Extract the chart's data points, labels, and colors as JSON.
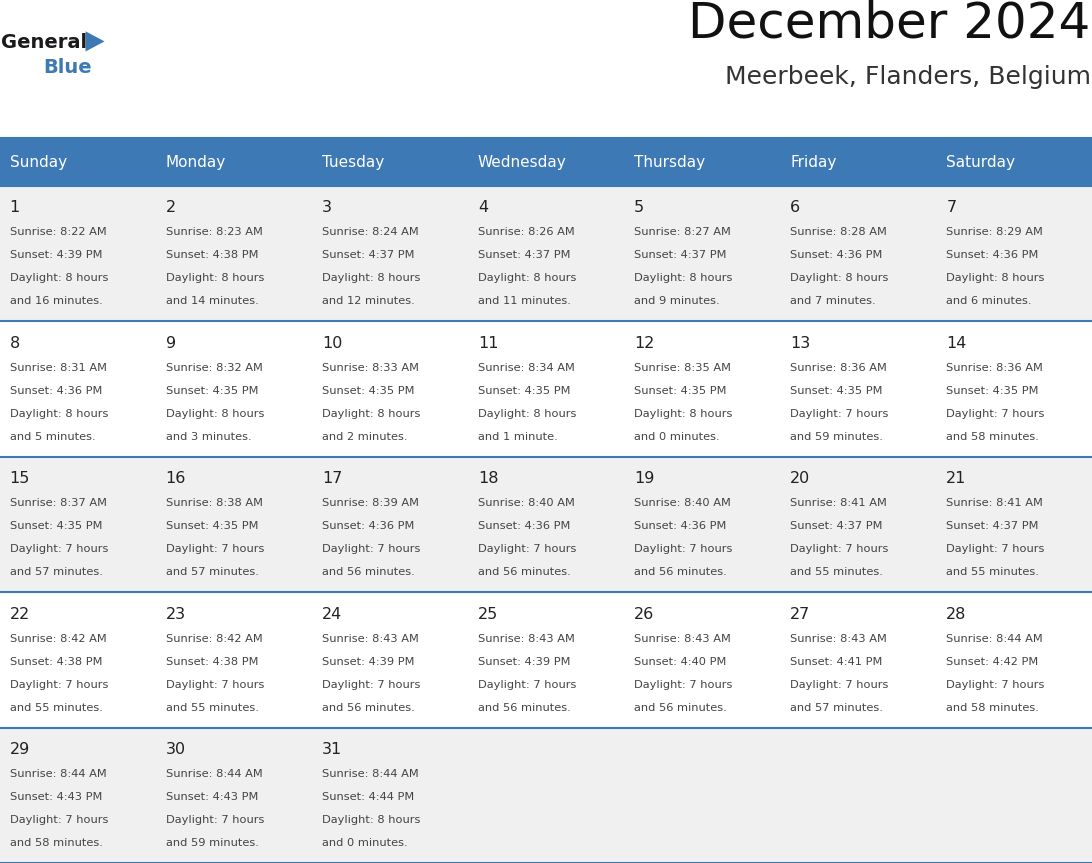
{
  "title": "December 2024",
  "subtitle": "Meerbeek, Flanders, Belgium",
  "days_of_week": [
    "Sunday",
    "Monday",
    "Tuesday",
    "Wednesday",
    "Thursday",
    "Friday",
    "Saturday"
  ],
  "header_bg": "#3d7ab5",
  "header_text": "#ffffff",
  "row_bg_even": "#f0f0f0",
  "row_bg_odd": "#ffffff",
  "cell_border": "#3d7ab5",
  "day_number_color": "#222222",
  "cell_text_color": "#444444",
  "title_color": "#111111",
  "subtitle_color": "#333333",
  "logo_general_color": "#1a1a1a",
  "logo_blue_color": "#3d7ab5",
  "weeks": [
    [
      {
        "day": 1,
        "sunrise": "8:22 AM",
        "sunset": "4:39 PM",
        "daylight": "8 hours",
        "daylight2": "and 16 minutes."
      },
      {
        "day": 2,
        "sunrise": "8:23 AM",
        "sunset": "4:38 PM",
        "daylight": "8 hours",
        "daylight2": "and 14 minutes."
      },
      {
        "day": 3,
        "sunrise": "8:24 AM",
        "sunset": "4:37 PM",
        "daylight": "8 hours",
        "daylight2": "and 12 minutes."
      },
      {
        "day": 4,
        "sunrise": "8:26 AM",
        "sunset": "4:37 PM",
        "daylight": "8 hours",
        "daylight2": "and 11 minutes."
      },
      {
        "day": 5,
        "sunrise": "8:27 AM",
        "sunset": "4:37 PM",
        "daylight": "8 hours",
        "daylight2": "and 9 minutes."
      },
      {
        "day": 6,
        "sunrise": "8:28 AM",
        "sunset": "4:36 PM",
        "daylight": "8 hours",
        "daylight2": "and 7 minutes."
      },
      {
        "day": 7,
        "sunrise": "8:29 AM",
        "sunset": "4:36 PM",
        "daylight": "8 hours",
        "daylight2": "and 6 minutes."
      }
    ],
    [
      {
        "day": 8,
        "sunrise": "8:31 AM",
        "sunset": "4:36 PM",
        "daylight": "8 hours",
        "daylight2": "and 5 minutes."
      },
      {
        "day": 9,
        "sunrise": "8:32 AM",
        "sunset": "4:35 PM",
        "daylight": "8 hours",
        "daylight2": "and 3 minutes."
      },
      {
        "day": 10,
        "sunrise": "8:33 AM",
        "sunset": "4:35 PM",
        "daylight": "8 hours",
        "daylight2": "and 2 minutes."
      },
      {
        "day": 11,
        "sunrise": "8:34 AM",
        "sunset": "4:35 PM",
        "daylight": "8 hours",
        "daylight2": "and 1 minute."
      },
      {
        "day": 12,
        "sunrise": "8:35 AM",
        "sunset": "4:35 PM",
        "daylight": "8 hours",
        "daylight2": "and 0 minutes."
      },
      {
        "day": 13,
        "sunrise": "8:36 AM",
        "sunset": "4:35 PM",
        "daylight": "7 hours",
        "daylight2": "and 59 minutes."
      },
      {
        "day": 14,
        "sunrise": "8:36 AM",
        "sunset": "4:35 PM",
        "daylight": "7 hours",
        "daylight2": "and 58 minutes."
      }
    ],
    [
      {
        "day": 15,
        "sunrise": "8:37 AM",
        "sunset": "4:35 PM",
        "daylight": "7 hours",
        "daylight2": "and 57 minutes."
      },
      {
        "day": 16,
        "sunrise": "8:38 AM",
        "sunset": "4:35 PM",
        "daylight": "7 hours",
        "daylight2": "and 57 minutes."
      },
      {
        "day": 17,
        "sunrise": "8:39 AM",
        "sunset": "4:36 PM",
        "daylight": "7 hours",
        "daylight2": "and 56 minutes."
      },
      {
        "day": 18,
        "sunrise": "8:40 AM",
        "sunset": "4:36 PM",
        "daylight": "7 hours",
        "daylight2": "and 56 minutes."
      },
      {
        "day": 19,
        "sunrise": "8:40 AM",
        "sunset": "4:36 PM",
        "daylight": "7 hours",
        "daylight2": "and 56 minutes."
      },
      {
        "day": 20,
        "sunrise": "8:41 AM",
        "sunset": "4:37 PM",
        "daylight": "7 hours",
        "daylight2": "and 55 minutes."
      },
      {
        "day": 21,
        "sunrise": "8:41 AM",
        "sunset": "4:37 PM",
        "daylight": "7 hours",
        "daylight2": "and 55 minutes."
      }
    ],
    [
      {
        "day": 22,
        "sunrise": "8:42 AM",
        "sunset": "4:38 PM",
        "daylight": "7 hours",
        "daylight2": "and 55 minutes."
      },
      {
        "day": 23,
        "sunrise": "8:42 AM",
        "sunset": "4:38 PM",
        "daylight": "7 hours",
        "daylight2": "and 55 minutes."
      },
      {
        "day": 24,
        "sunrise": "8:43 AM",
        "sunset": "4:39 PM",
        "daylight": "7 hours",
        "daylight2": "and 56 minutes."
      },
      {
        "day": 25,
        "sunrise": "8:43 AM",
        "sunset": "4:39 PM",
        "daylight": "7 hours",
        "daylight2": "and 56 minutes."
      },
      {
        "day": 26,
        "sunrise": "8:43 AM",
        "sunset": "4:40 PM",
        "daylight": "7 hours",
        "daylight2": "and 56 minutes."
      },
      {
        "day": 27,
        "sunrise": "8:43 AM",
        "sunset": "4:41 PM",
        "daylight": "7 hours",
        "daylight2": "and 57 minutes."
      },
      {
        "day": 28,
        "sunrise": "8:44 AM",
        "sunset": "4:42 PM",
        "daylight": "7 hours",
        "daylight2": "and 58 minutes."
      }
    ],
    [
      {
        "day": 29,
        "sunrise": "8:44 AM",
        "sunset": "4:43 PM",
        "daylight": "7 hours",
        "daylight2": "and 58 minutes."
      },
      {
        "day": 30,
        "sunrise": "8:44 AM",
        "sunset": "4:43 PM",
        "daylight": "7 hours",
        "daylight2": "and 59 minutes."
      },
      {
        "day": 31,
        "sunrise": "8:44 AM",
        "sunset": "4:44 PM",
        "daylight": "8 hours",
        "daylight2": "and 0 minutes."
      },
      null,
      null,
      null,
      null
    ]
  ]
}
